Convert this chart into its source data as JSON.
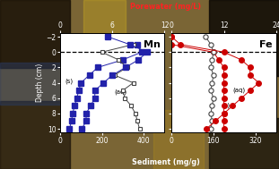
{
  "title_porewater": "Porewater (mg/L)",
  "xlabel_sediment": "Sediment (mg/g)",
  "ylabel": "Depth (cm)",
  "mn_label": "Mn",
  "fe_label": "Fe",
  "depth_ticks": [
    -2,
    0,
    2,
    4,
    6,
    8,
    10
  ],
  "mn_solid_depth": [
    -1,
    0,
    1,
    2,
    3,
    4,
    5,
    6,
    7,
    8,
    9,
    10
  ],
  "mn_solid_values": [
    370,
    390,
    300,
    180,
    140,
    100,
    90,
    80,
    70,
    60,
    55,
    45
  ],
  "mn_aq_depth": [
    -1,
    0,
    1,
    2,
    3,
    4,
    5,
    6,
    7,
    8,
    9,
    10
  ],
  "mn_aq_values": [
    350,
    200,
    280,
    320,
    260,
    350,
    300,
    310,
    340,
    360,
    370,
    380
  ],
  "mn_pw_depth": [
    -2,
    -1,
    0,
    1,
    2,
    3,
    4,
    5,
    6,
    7,
    8,
    9,
    10
  ],
  "mn_pw_values": [
    5.5,
    8,
    10,
    9,
    7.5,
    6,
    5,
    4,
    4,
    3.5,
    3,
    3,
    2.5
  ],
  "fe_solid_depth": [
    -2,
    -1,
    0,
    1,
    2,
    3,
    4,
    5,
    6,
    7,
    8,
    9,
    10
  ],
  "fe_solid_values": [
    0,
    0,
    160,
    180,
    200,
    200,
    200,
    200,
    200,
    200,
    200,
    200,
    200
  ],
  "fe_aq_depth": [
    -2,
    -1,
    0,
    1,
    2,
    3,
    4,
    5,
    6,
    7,
    8,
    9,
    10
  ],
  "fe_aq_values": [
    130,
    150,
    160,
    155,
    150,
    160,
    155,
    150,
    160,
    155,
    150,
    155,
    150
  ],
  "fe_pw_depth": [
    -2,
    -1,
    0,
    1,
    2,
    3,
    4,
    5,
    6,
    7,
    8,
    9,
    10
  ],
  "fe_pw_values": [
    0,
    2,
    12,
    16,
    18,
    18,
    20,
    18,
    16,
    14,
    12,
    10,
    8
  ],
  "mn_sed_xlim": [
    0,
    500
  ],
  "mn_pw_xlim": [
    0,
    12
  ],
  "fe_sed_xlim": [
    0,
    400
  ],
  "fe_pw_xlim": [
    0,
    24
  ],
  "depth_ylim": [
    10.5,
    -2.5
  ],
  "mn_solid_color": "#2222aa",
  "mn_aq_color": "#444444",
  "fe_solid_color": "#cc0000",
  "fe_aq_color": "#444444",
  "porewater_label_color": "#ff2222",
  "sediment_label_color": "#ffffff",
  "ylabel_color": "#ffffff",
  "tick_label_color": "#ffffff"
}
